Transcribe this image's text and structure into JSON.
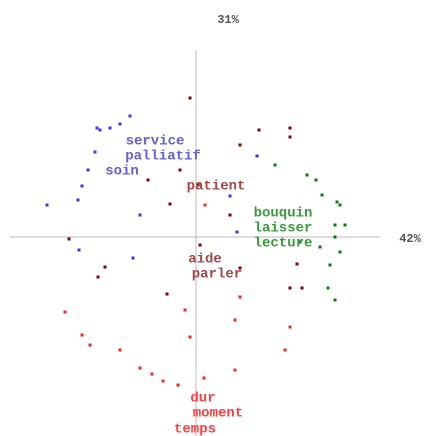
{
  "chart_data": {
    "type": "scatter",
    "x_label": "42%",
    "y_label": "31%",
    "xlim": [
      -1.86,
      1.84
    ],
    "ylim": [
      -1.99,
      1.87
    ],
    "series": [
      {
        "color": "#3333ff",
        "x": [
          -0.99,
          -0.96,
          -0.86,
          -0.76,
          -0.66,
          -1.01,
          -1.08,
          -1.14,
          -1.18,
          -1.49,
          -0.56,
          -1.17,
          -0.63,
          0.34,
          0.41,
          0.61
        ],
        "values": [
          1.09,
          1.07,
          1.09,
          1.13,
          1.21,
          0.85,
          0.67,
          0.51,
          0.37,
          0.32,
          0.22,
          -0.13,
          -0.21,
          0.41,
          0.05,
          0.81
        ]
      },
      {
        "color": "#800000",
        "x": [
          -0.06,
          0.63,
          0.94,
          0.94,
          0.44,
          -0.48,
          -0.16,
          0.02,
          -0.26,
          -1.27,
          -0.91,
          -0.98,
          0.04,
          1.01,
          1.06,
          0.94,
          -0.29,
          0.34,
          0.44
        ],
        "values": [
          1.39,
          1.07,
          1.09,
          1.0,
          0.92,
          0.57,
          0.67,
          0.52,
          0.33,
          -0.02,
          -0.3,
          -0.4,
          -0.08,
          -0.27,
          -0.51,
          -0.51,
          -0.57,
          0.22,
          -0.31
        ]
      },
      {
        "color": "#008000",
        "x": [
          0.79,
          1.11,
          1.2,
          1.26,
          1.41,
          1.44,
          1.39,
          1.49,
          1.39,
          1.44,
          1.34,
          1.32,
          1.39,
          1.24,
          1.04
        ],
        "values": [
          0.72,
          0.62,
          0.57,
          0.42,
          0.35,
          0.32,
          0.12,
          0.12,
          0.0,
          -0.15,
          -0.28,
          -0.51,
          -0.63,
          -0.1,
          -0.05
        ]
      },
      {
        "color": "#ff2020",
        "x": [
          0.09,
          -1.31,
          -1.14,
          -1.06,
          -0.76,
          -0.56,
          -0.44,
          -0.33,
          -0.18,
          0.08,
          0.39,
          0.89,
          0.94,
          -0.06,
          0.39,
          -0.11,
          0.44
        ],
        "values": [
          0.32,
          -0.75,
          -0.98,
          -1.08,
          -1.13,
          -1.31,
          -1.37,
          -1.44,
          -1.48,
          -1.41,
          -1.33,
          -1.13,
          -0.9,
          -1.0,
          -0.83,
          -0.73,
          -0.6
        ]
      }
    ],
    "annotations": [
      {
        "text": "service",
        "x": -0.41,
        "y": 0.96,
        "color": "#6060e0"
      },
      {
        "text": "palliatif",
        "x": -0.33,
        "y": 0.81,
        "color": "#6060e0"
      },
      {
        "text": "soin",
        "x": -0.74,
        "y": 0.66,
        "color": "#6060e0"
      },
      {
        "text": "patient",
        "x": 0.2,
        "y": 0.51,
        "color": "#a04848"
      },
      {
        "text": "bouquin",
        "x": 0.87,
        "y": 0.24,
        "color": "#3a9a3a"
      },
      {
        "text": "laisser",
        "x": 0.87,
        "y": 0.09,
        "color": "#3a9a3a"
      },
      {
        "text": "lecture",
        "x": 0.87,
        "y": -0.06,
        "color": "#3a9a3a"
      },
      {
        "text": "aide",
        "x": 0.09,
        "y": -0.22,
        "color": "#a04848"
      },
      {
        "text": "parler",
        "x": 0.21,
        "y": -0.37,
        "color": "#a04848"
      },
      {
        "text": "dur",
        "x": 0.07,
        "y": -1.61,
        "color": "#ff4040"
      },
      {
        "text": "moment",
        "x": 0.22,
        "y": -1.76,
        "color": "#ff4040"
      },
      {
        "text": "temps",
        "x": -0.01,
        "y": -1.92,
        "color": "#ff4040"
      }
    ]
  }
}
